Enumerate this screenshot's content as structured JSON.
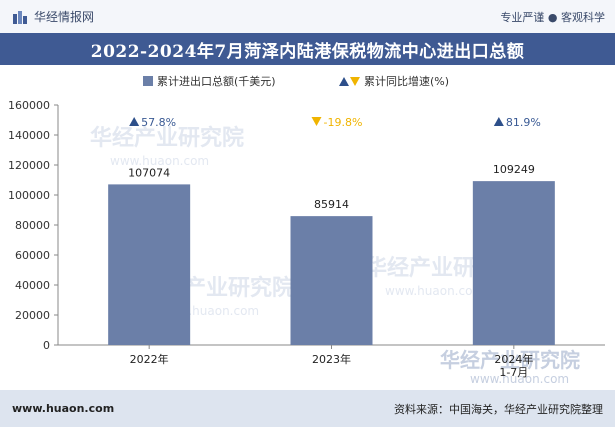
{
  "header": {
    "brand_name": "华经情报网",
    "tagline": "专业严谨 ● 客观科学"
  },
  "title": "2022-2024年7月菏泽内陆港保税物流中心进出口总额",
  "watermark": "华经产业研究院",
  "watermark_url": "www.huaon.com",
  "footer": {
    "site": "www.huaon.com",
    "source": "资料来源：中国海关，华经产业研究院整理"
  },
  "colors": {
    "bar": "#6b7fa8",
    "title_bg": "#3f5a93",
    "up": "#2d4f8a",
    "down": "#f0b400",
    "rate_up_text": "#3a5a94",
    "rate_down_text": "#f0b400"
  },
  "chart_data": {
    "type": "bar",
    "title": "2022-2024年7月菏泽内陆港保税物流中心进出口总额",
    "categories": [
      "2022年",
      "2023年",
      "2024年\n1-7月"
    ],
    "series": [
      {
        "name": "累计进出口总额(千美元)",
        "values": [
          107074,
          85914,
          109249
        ]
      }
    ],
    "growth": {
      "name": "累计同比增速(%)",
      "labels": [
        "57.8%",
        "-19.8%",
        "81.9%"
      ],
      "values": [
        57.8,
        -19.8,
        81.9
      ]
    },
    "value_labels": [
      "107074",
      "85914",
      "109249"
    ],
    "ylim": [
      0,
      160000
    ],
    "yticks": [
      0,
      20000,
      40000,
      60000,
      80000,
      100000,
      120000,
      140000,
      160000
    ],
    "ytick_labels": [
      "0",
      "20000",
      "40000",
      "60000",
      "80000",
      "100000",
      "120000",
      "140000",
      "160000"
    ],
    "legend_position": "top-center"
  }
}
